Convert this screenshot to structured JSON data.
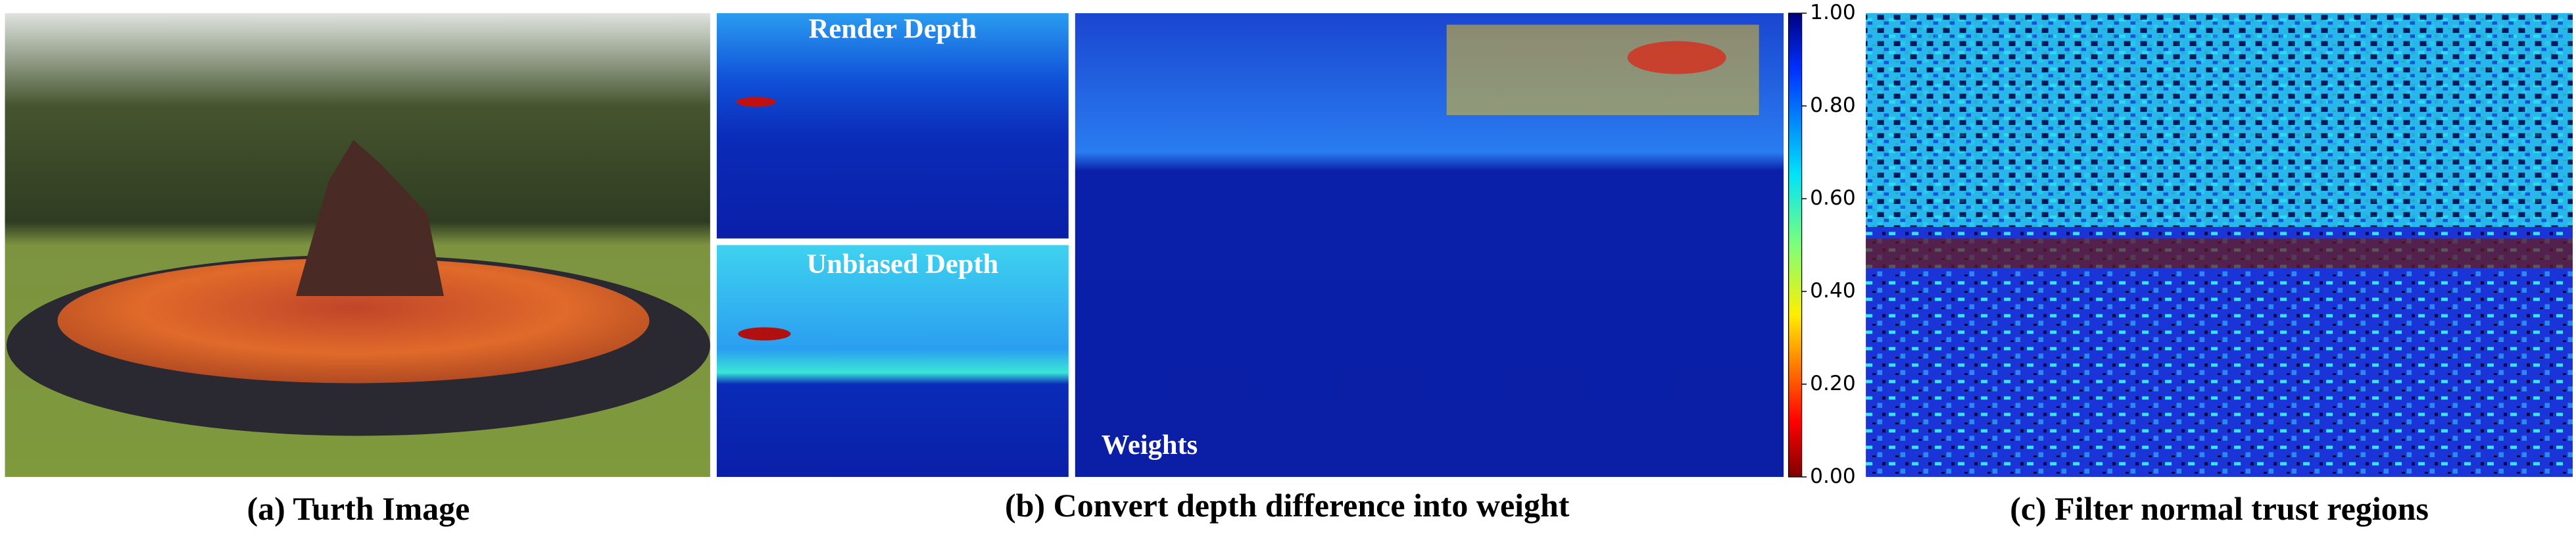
{
  "panels": {
    "a": {
      "caption": "(a) Turth Image"
    },
    "b": {
      "caption": "(b) Convert depth difference into weight",
      "render_label": "Render Depth",
      "unbiased_label": "Unbiased Depth",
      "weights_label": "Weights",
      "colorbar_ticks": [
        "1.00",
        "0.80",
        "0.60",
        "0.40",
        "0.20",
        "0.00"
      ]
    },
    "c": {
      "caption": "(c) Filter normal trust regions"
    }
  }
}
